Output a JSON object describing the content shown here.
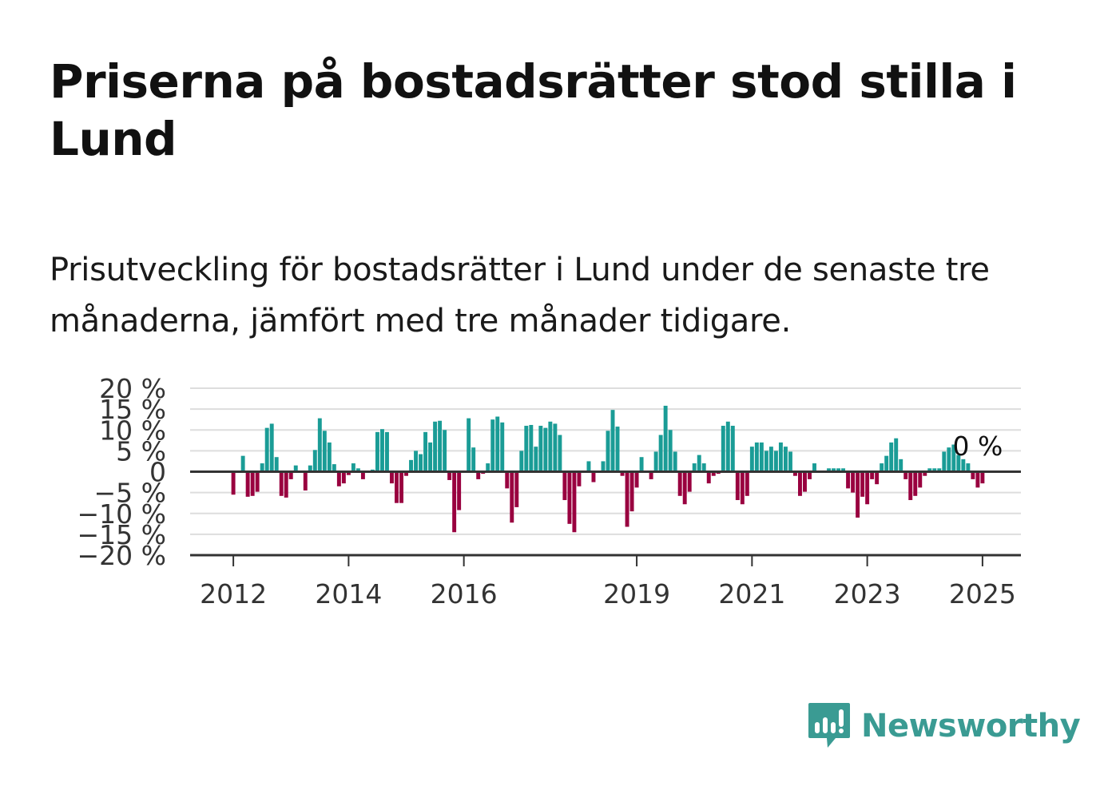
{
  "title": "Priserna på bostadsrätter stod stilla i Lund",
  "subtitle": "Prisutveckling för bostadsrätter i Lund under de senaste tre månaderna, jämfört med tre månader tidigare.",
  "brand": {
    "name": "Newsworthy",
    "color": "#3a9b93",
    "icon": "newsworthy-logo-icon"
  },
  "colors": {
    "positive": "#1a9c96",
    "negative": "#99003f",
    "grid": "#dddddd",
    "axis": "#333333"
  },
  "chart_data": {
    "type": "bar",
    "x_start": "2012-01",
    "x_interval": "month",
    "ylim": [
      -20,
      20
    ],
    "yticks": [
      20,
      15,
      10,
      5,
      0,
      -5,
      -10,
      -15,
      -20
    ],
    "ytick_labels": [
      "20 %",
      "15 %",
      "10 %",
      "5 %",
      "0",
      "−5 %",
      "−10 %",
      "−15 %",
      "−20 %"
    ],
    "xticks": [
      "2012",
      "2014",
      "2016",
      "2019",
      "2021",
      "2023",
      "2025"
    ],
    "xlim": [
      "2011-04",
      "2025-09"
    ],
    "grid": true,
    "annotation": {
      "text": "0 %",
      "at": "2024-12"
    },
    "values": [
      -5.5,
      0,
      3.8,
      -6,
      -5.8,
      -4.8,
      2,
      10.5,
      11.5,
      3.5,
      -5.8,
      -6.2,
      -1.8,
      1.5,
      0,
      -4.5,
      1.5,
      5.2,
      12.8,
      9.8,
      7,
      1.8,
      -3.5,
      -2.8,
      -0.8,
      2,
      0.8,
      -1.8,
      0,
      0.5,
      9.5,
      10.2,
      9.5,
      -2.8,
      -7.5,
      -7.5,
      -1,
      2.8,
      5,
      4.2,
      9.5,
      7,
      12,
      12.2,
      10,
      -2,
      -14.5,
      -9.2,
      0,
      12.8,
      5.8,
      -1.8,
      -0.5,
      2,
      12.5,
      13.2,
      11.8,
      -4,
      -12.2,
      -8.5,
      5,
      11,
      11.2,
      6,
      11,
      10.5,
      12,
      11.5,
      8.8,
      -6.8,
      -12.5,
      -14.5,
      -3.5,
      0,
      2.5,
      -2.5,
      0,
      2.5,
      9.8,
      14.8,
      10.8,
      -1,
      -13.2,
      -9.5,
      -3.8,
      3.5,
      0,
      -1.8,
      4.8,
      8.8,
      15.8,
      10,
      4.8,
      -5.8,
      -7.8,
      -4.8,
      2,
      4,
      2,
      -2.8,
      -1,
      -0.5,
      11,
      12,
      11,
      -6.8,
      -7.8,
      -5.8,
      6,
      7,
      7,
      5,
      6,
      5,
      7,
      6,
      4.8,
      -1,
      -5.8,
      -4.8,
      -1.8,
      2,
      0,
      0,
      0.8,
      0.8,
      0.8,
      0.8,
      -4,
      -5,
      -11,
      -6,
      -7.8,
      -1.8,
      -3,
      2,
      3.8,
      7,
      8,
      3,
      -1.8,
      -6.8,
      -5.8,
      -3.8,
      -1,
      0.8,
      0.8,
      0.8,
      4.8,
      5.8,
      6.5,
      4,
      3,
      2,
      -1.8,
      -3.8,
      -2.8,
      0
    ]
  }
}
